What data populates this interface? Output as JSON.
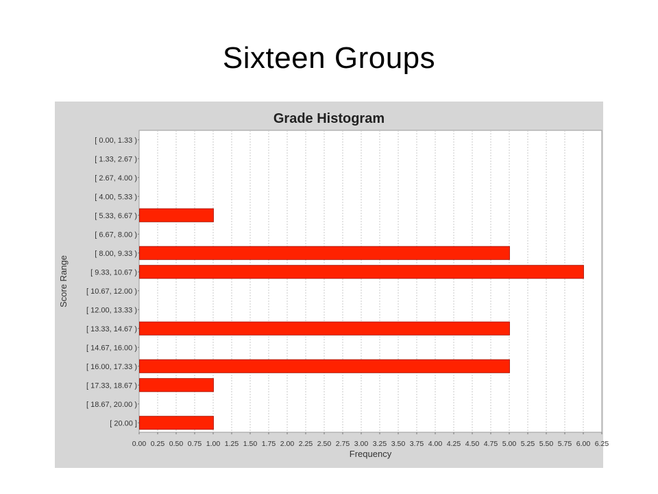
{
  "slide": {
    "title": "Sixteen Groups"
  },
  "chart_data": {
    "type": "bar",
    "orientation": "horizontal",
    "title": "Grade Histogram",
    "xlabel": "Frequency",
    "ylabel": "Score Range",
    "xlim": [
      0,
      6.25
    ],
    "grid": true,
    "categories": [
      "[ 0.00, 1.33 )",
      "[ 1.33, 2.67 )",
      "[ 2.67, 4.00 )",
      "[ 4.00, 5.33 )",
      "[ 5.33, 6.67 )",
      "[ 6.67, 8.00 )",
      "[ 8.00, 9.33 )",
      "[ 9.33, 10.67 )",
      "[ 10.67, 12.00 )",
      "[ 12.00, 13.33 )",
      "[ 13.33, 14.67 )",
      "[ 14.67, 16.00 )",
      "[ 16.00, 17.33 )",
      "[ 17.33, 18.67 )",
      "[ 18.67, 20.00 )",
      "[ 20.00 ]"
    ],
    "values": [
      0,
      0,
      0,
      0,
      1,
      0,
      5,
      6,
      0,
      0,
      5,
      0,
      5,
      1,
      0,
      1
    ],
    "xticks": [
      "0.00",
      "0.25",
      "0.50",
      "0.75",
      "1.00",
      "1.25",
      "1.50",
      "1.75",
      "2.00",
      "2.25",
      "2.50",
      "2.75",
      "3.00",
      "3.25",
      "3.50",
      "3.75",
      "4.00",
      "4.25",
      "4.50",
      "4.75",
      "5.00",
      "5.25",
      "5.50",
      "5.75",
      "6.00",
      "6.25"
    ],
    "colors": {
      "bar": "#ff2200",
      "bar_edge": "#a01000",
      "panel": "#d6d6d6",
      "plot_bg": "#ffffff",
      "grid": "#c8c8c8"
    }
  }
}
